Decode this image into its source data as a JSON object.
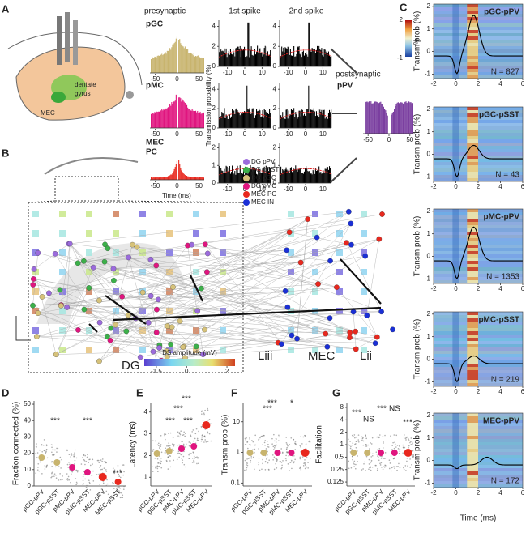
{
  "panel_labels": [
    "A",
    "B",
    "C",
    "D",
    "E",
    "F",
    "G"
  ],
  "A": {
    "brain": [
      "dentate",
      "gyrus",
      "MEC"
    ],
    "presynaptic": "presynaptic",
    "cells": [
      "pGC",
      "pMC",
      "MEC",
      "PC"
    ],
    "time_label": "Time (ms)",
    "auto_xlim": [
      -62,
      62
    ],
    "auto_xticks": [
      -50,
      0,
      50
    ],
    "spike_titles": [
      "1st spike",
      "2nd spike"
    ],
    "spike_ylabel": "Transmission probability (%)",
    "spike_xlim": [
      -15,
      15
    ],
    "spike_xticks": [
      -10,
      0,
      10
    ],
    "spike_yticks": [
      [
        0,
        2,
        4
      ],
      [
        0,
        2,
        4
      ],
      [
        0,
        1,
        2
      ]
    ],
    "spike_ylims": [
      [
        0,
        4.6
      ],
      [
        0,
        4.6
      ],
      [
        0,
        2.3
      ]
    ],
    "postsynaptic": "postsynaptic",
    "post_cell": "pPV"
  },
  "B": {
    "legend": [
      {
        "name": "DG pPV",
        "color": "#9b6bdc"
      },
      {
        "name": "DG pSST",
        "color": "#3cb04a"
      },
      {
        "name": "DG pGC",
        "color": "#d6c27a"
      },
      {
        "name": "DG pMC",
        "color": "#e0157f"
      },
      {
        "name": "MEC PC",
        "color": "#e8281e"
      },
      {
        "name": "MEC IN",
        "color": "#1a2fd6"
      }
    ],
    "regions": [
      "DG",
      "Liii",
      "MEC",
      "Lii"
    ],
    "colorbar_label": "DS amplitude (mV)",
    "colorbar_lim": [
      -2.1,
      2.4
    ],
    "colorbar_ticks": [
      -1.5,
      0,
      2
    ]
  },
  "C": {
    "pairs": [
      {
        "title": "pGC-pPV",
        "n": "N = 827"
      },
      {
        "title": "pGC-pSST",
        "n": "N = 43"
      },
      {
        "title": "pMC-pPV",
        "n": "N = 1353"
      },
      {
        "title": "pMC-pSST",
        "n": "N = 219"
      },
      {
        "title": "MEC-pPV",
        "n": "N = 172"
      }
    ],
    "ylabel": "Transm prob (%)",
    "xlabel": "Time (ms)",
    "xlim": [
      -2,
      6
    ],
    "xticks": [
      -2,
      0,
      2,
      4,
      6
    ],
    "ylim": [
      -1.2,
      2.1
    ],
    "yticks": [
      -1,
      0,
      1,
      2
    ],
    "colorbar_label": "%",
    "colorbar_ticks": [
      2,
      -1
    ]
  },
  "D": {
    "ylabel": "Fraction connected (%)",
    "ylim": [
      0,
      52
    ],
    "yticks": [
      0,
      10,
      20,
      30,
      40,
      50
    ],
    "categories": [
      "pGC-pPV",
      "pGC-pSST",
      "pMC-pPV",
      "pMC-pSST",
      "MEC-pPV",
      "MEC-pSST"
    ],
    "stars": [
      "***",
      "***",
      "***"
    ]
  },
  "E": {
    "ylabel": "Latency (ms)",
    "ylim": [
      0.6,
      4.4
    ],
    "yticks": [
      1,
      2,
      3,
      4
    ],
    "categories": [
      "pGC-pPV",
      "pGC-pSST",
      "pMC-pPV",
      "pMC-pSST",
      "MEC-pPV"
    ],
    "stars": [
      "***",
      "***",
      "***",
      "***"
    ]
  },
  "F": {
    "ylabel": "Transm prob (%)",
    "ylim": [
      0.08,
      40
    ],
    "yticks": [
      0.1,
      1,
      10
    ],
    "log": true,
    "categories": [
      "pGC-pPV",
      "pGC-pSST",
      "pMC-pPV",
      "pMC-pSST",
      "MEC-pPV"
    ],
    "stars": [
      "***",
      "***",
      "*"
    ]
  },
  "G": {
    "ylabel": "Facilitation",
    "ylim": [
      0.1,
      10
    ],
    "yticks": [
      0.125,
      0.25,
      0.5,
      1,
      2,
      4,
      8
    ],
    "log": true,
    "categories": [
      "pGC-pPV",
      "pGC-pSST",
      "pMC-pPV",
      "pMC-pSST",
      "MEC-pPV"
    ],
    "stars": [
      "***",
      "NS",
      "***",
      "NS",
      "***"
    ]
  }
}
